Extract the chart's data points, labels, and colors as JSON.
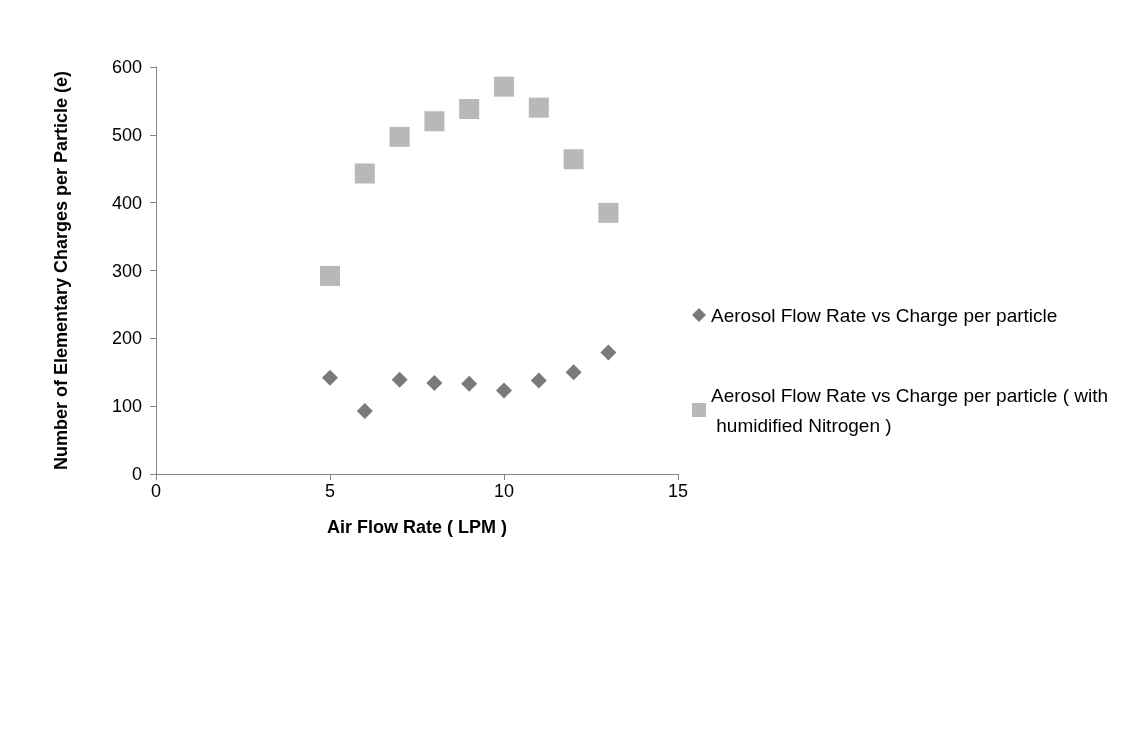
{
  "chart_data": {
    "type": "scatter",
    "xlabel": "Air Flow Rate ( LPM )",
    "ylabel": "Number of Elementary Charges per Particle (e)",
    "x": [
      5,
      6,
      7,
      8,
      9,
      10,
      11,
      12,
      13
    ],
    "series": [
      {
        "name": "Aerosol Flow Rate vs Charge per particle",
        "color": "#595959",
        "marker": "diamond",
        "values": [
          142,
          93,
          139,
          134,
          133,
          123,
          138,
          150,
          179
        ]
      },
      {
        "name": "Aerosol Flow Rate vs Charge per particle ( with humidified Nitrogen )",
        "color": "#a6a6a6",
        "marker": "square",
        "values": [
          292,
          443,
          497,
          520,
          538,
          571,
          540,
          464,
          385
        ]
      }
    ],
    "xlim": [
      0,
      15
    ],
    "xticks": [
      0,
      5,
      10,
      15
    ],
    "ylim": [
      0,
      600
    ],
    "yticks": [
      0,
      100,
      200,
      300,
      400,
      500,
      600
    ],
    "grid": false,
    "legend": "right"
  }
}
